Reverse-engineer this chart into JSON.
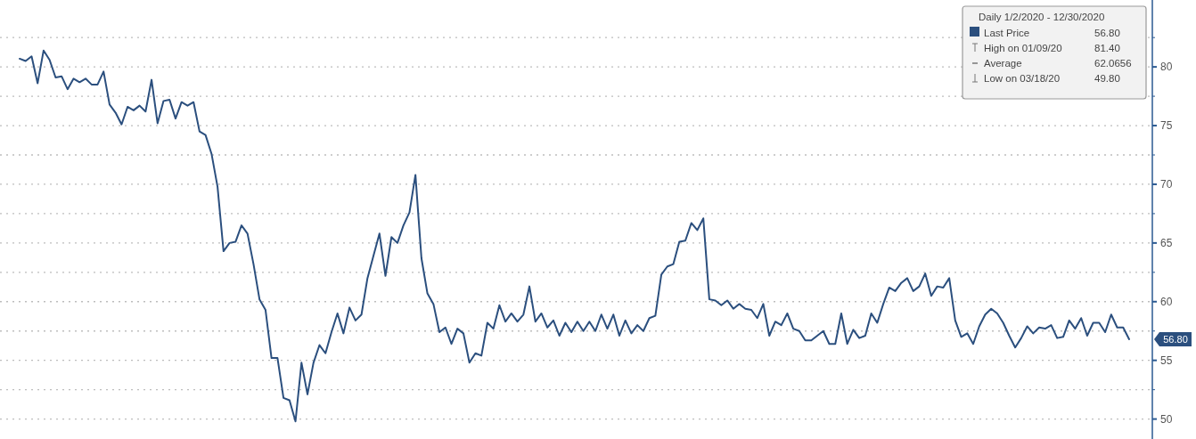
{
  "chart_data": {
    "type": "line",
    "legend_title": "Daily 1/2/2020 - 12/30/2020",
    "legend": "top right",
    "grid": "y",
    "categories": [
      null,
      null,
      null,
      null,
      null,
      null,
      null,
      null,
      null,
      null,
      null,
      null,
      null,
      null,
      null,
      null,
      null,
      null,
      null,
      null,
      null,
      null,
      null,
      null,
      null,
      null,
      null,
      null,
      null,
      null,
      null,
      null,
      null,
      null,
      null,
      null,
      null,
      null,
      null,
      null,
      null,
      null,
      null,
      null,
      null,
      null,
      null,
      null,
      null,
      null,
      null,
      null,
      null,
      null,
      null,
      null,
      null,
      null,
      null,
      null,
      null,
      null,
      null,
      null,
      null,
      null,
      null,
      null,
      null,
      null,
      null,
      null,
      null,
      null,
      null,
      null,
      null,
      null,
      null,
      null,
      null,
      null,
      null,
      null,
      null,
      null,
      null,
      null,
      null,
      null,
      null,
      null,
      null,
      null,
      null,
      null,
      null,
      null,
      null,
      null,
      null,
      null,
      null,
      null,
      null,
      null,
      null,
      null,
      null,
      null,
      null,
      null,
      null,
      null,
      null,
      null,
      null,
      null,
      null,
      null,
      null,
      null,
      null,
      null,
      null,
      null,
      null,
      null,
      null,
      null,
      null,
      null,
      null,
      null,
      null,
      null,
      null,
      null,
      null,
      null,
      null,
      null,
      null,
      null,
      null,
      null,
      null,
      null,
      null,
      null,
      null,
      null,
      null,
      null,
      null,
      null,
      null,
      null,
      null,
      null,
      null,
      null,
      null,
      null,
      null,
      null,
      null,
      null,
      null,
      null,
      null,
      null,
      null,
      null,
      null,
      null,
      null,
      null,
      null,
      null,
      null,
      null,
      null,
      null,
      null,
      null
    ],
    "ylim": [
      48.3,
      85.7
    ],
    "yticks": [
      50,
      {
        "value": 52.5,
        "label": null
      },
      55,
      {
        "value": 57.5,
        "label": null
      },
      60,
      {
        "value": 62.5,
        "label": null
      },
      65,
      {
        "value": 67.5,
        "label": null
      },
      70,
      {
        "value": 72.5,
        "label": null
      },
      75,
      {
        "value": 77.5,
        "label": null
      },
      80,
      {
        "value": 82.5,
        "label": null
      }
    ],
    "annotations": [
      "56.80",
      "56.80",
      "High on 01/09/20",
      "81.40",
      "Average",
      "62.0656",
      "Low on 03/18/20",
      "49.80"
    ],
    "series": [
      {
        "name": "Last Price",
        "color": "#2b4f7e",
        "values": [
          80.7,
          80.5,
          80.9,
          78.6,
          81.4,
          80.6,
          79.1,
          79.2,
          78.1,
          79.0,
          78.7,
          79.0,
          78.5,
          78.5,
          79.6,
          76.8,
          76.1,
          75.1,
          76.6,
          76.3,
          76.7,
          76.2,
          78.9,
          75.2,
          77.1,
          77.2,
          75.6,
          77.0,
          76.7,
          77.0,
          74.5,
          74.2,
          72.6,
          69.8,
          64.3,
          65.0,
          65.1,
          66.5,
          65.8,
          63.2,
          60.2,
          59.3,
          55.2,
          55.2,
          51.8,
          51.6,
          49.8,
          54.8,
          52.1,
          54.8,
          56.3,
          55.6,
          57.4,
          59.0,
          57.3,
          59.5,
          58.4,
          58.9,
          62.0,
          63.9,
          65.8,
          62.2,
          65.5,
          65.0,
          66.5,
          67.6,
          70.8,
          63.7,
          60.7,
          59.8,
          57.4,
          57.8,
          56.4,
          57.7,
          57.3,
          54.8,
          55.6,
          55.4,
          58.2,
          57.7,
          59.7,
          58.3,
          59.0,
          58.3,
          58.9,
          61.3,
          58.3,
          59.0,
          57.8,
          58.4,
          57.1,
          58.2,
          57.4,
          58.3,
          57.5,
          58.3,
          57.5,
          58.9,
          57.7,
          58.9,
          57.1,
          58.4,
          57.3,
          58.0,
          57.5,
          58.6,
          58.8,
          62.3,
          63.0,
          63.2,
          65.1,
          65.2,
          66.7,
          66.1,
          67.1,
          60.2,
          60.1,
          59.7,
          60.1,
          59.4,
          59.8,
          59.4,
          59.3,
          58.6,
          59.8,
          57.1,
          58.3,
          58.0,
          59.0,
          57.7,
          57.5,
          56.7,
          56.7,
          57.1,
          57.5,
          56.4,
          56.4,
          59.0,
          56.4,
          57.6,
          56.9,
          57.1,
          59.0,
          58.2,
          59.8,
          61.2,
          60.9,
          61.6,
          62.0,
          60.9,
          61.3,
          62.4,
          60.5,
          61.3,
          61.2,
          62.0,
          58.4,
          57.0,
          57.3,
          56.4,
          57.9,
          58.9,
          59.4,
          59.0,
          58.2,
          57.1,
          56.1,
          56.9,
          57.9,
          57.3,
          57.8,
          57.7,
          58.0,
          56.9,
          57.0,
          58.4,
          57.7,
          58.6,
          57.1,
          58.2,
          58.2,
          57.4,
          58.9,
          57.8,
          57.8,
          56.8
        ]
      }
    ]
  }
}
